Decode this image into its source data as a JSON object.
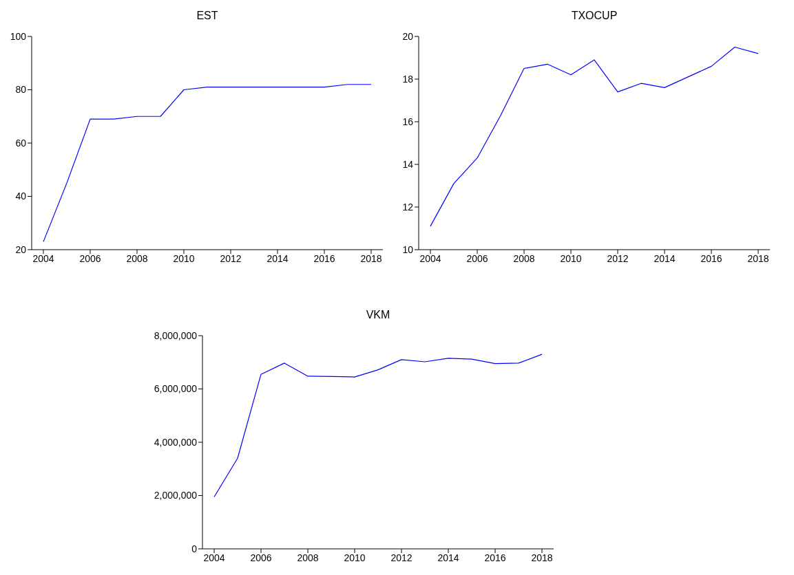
{
  "chart_data": [
    {
      "type": "line",
      "title": "EST",
      "x": [
        2004,
        2005,
        2006,
        2007,
        2008,
        2009,
        2010,
        2011,
        2012,
        2013,
        2014,
        2015,
        2016,
        2017,
        2018
      ],
      "series": [
        {
          "color": "#0000ff",
          "values": [
            23,
            45,
            69,
            69,
            70,
            70,
            80,
            81,
            81,
            81,
            81,
            81,
            81,
            82,
            82
          ]
        }
      ],
      "xlim": [
        2003.5,
        2018.5
      ],
      "xticks": [
        2004,
        2006,
        2008,
        2010,
        2012,
        2014,
        2016,
        2018
      ],
      "ylim": [
        20,
        100
      ],
      "yticks": [
        20,
        40,
        60,
        80,
        100
      ],
      "marker": "none",
      "line_style": "solid"
    },
    {
      "type": "line",
      "title": "TXOCUP",
      "x": [
        2004,
        2005,
        2006,
        2007,
        2008,
        2009,
        2010,
        2011,
        2012,
        2013,
        2014,
        2015,
        2016,
        2017,
        2018
      ],
      "series": [
        {
          "color": "#0000ff",
          "values": [
            11.1,
            13.1,
            14.3,
            16.3,
            18.5,
            18.7,
            18.2,
            18.9,
            17.4,
            17.8,
            17.6,
            18.1,
            18.6,
            19.5,
            19.2
          ]
        }
      ],
      "xlim": [
        2003.5,
        2018.5
      ],
      "xticks": [
        2004,
        2006,
        2008,
        2010,
        2012,
        2014,
        2016,
        2018
      ],
      "ylim": [
        10,
        20
      ],
      "yticks": [
        10,
        12,
        14,
        16,
        18,
        20
      ],
      "marker": "none",
      "line_style": "solid"
    },
    {
      "type": "line",
      "title": "VKM",
      "x": [
        2004,
        2005,
        2006,
        2007,
        2008,
        2009,
        2010,
        2011,
        2012,
        2013,
        2014,
        2015,
        2016,
        2017,
        2018
      ],
      "series": [
        {
          "color": "#0000ff",
          "values": [
            1950000,
            3400000,
            6550000,
            6970000,
            6480000,
            6470000,
            6450000,
            6720000,
            7100000,
            7020000,
            7150000,
            7120000,
            6950000,
            6970000,
            7300000
          ]
        }
      ],
      "xlim": [
        2003.5,
        2018.5
      ],
      "xticks": [
        2004,
        2006,
        2008,
        2010,
        2012,
        2014,
        2016,
        2018
      ],
      "ylim": [
        0,
        8000000
      ],
      "yticks": [
        {
          "value": 0,
          "label": "0"
        },
        {
          "value": 2000000,
          "label": "2,000,000"
        },
        {
          "value": 4000000,
          "label": "4,000,000"
        },
        {
          "value": 6000000,
          "label": "6,000,000"
        },
        {
          "value": 8000000,
          "label": "8,000,000"
        }
      ],
      "marker": "none",
      "line_style": "solid"
    }
  ]
}
